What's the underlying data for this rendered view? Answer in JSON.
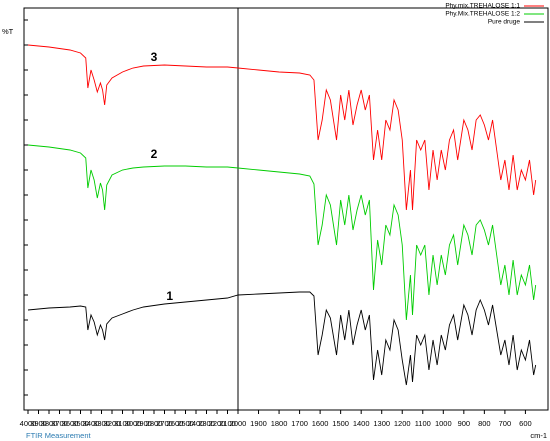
{
  "chart_data": {
    "type": "line",
    "ylabel": "%T",
    "xlabel": "cm-1",
    "footer": "FTIR Measurement",
    "xlim": [
      4000,
      490
    ],
    "xbreak": 2000,
    "ylim": [
      0,
      400
    ],
    "xticks": [
      4000,
      3900,
      3800,
      3700,
      3600,
      3500,
      3400,
      3300,
      3200,
      3100,
      3000,
      2900,
      2800,
      2700,
      2600,
      2500,
      2400,
      2300,
      2200,
      2100,
      2000,
      1900,
      1800,
      1700,
      1600,
      1500,
      1400,
      1300,
      1200,
      1100,
      1000,
      900,
      800,
      700,
      600
    ],
    "x": [
      4000,
      3800,
      3600,
      3500,
      3450,
      3430,
      3400,
      3370,
      3340,
      3310,
      3290,
      3270,
      3250,
      3200,
      3100,
      3000,
      2900,
      2700,
      2500,
      2300,
      2100,
      2000,
      1900,
      1800,
      1700,
      1650,
      1630,
      1610,
      1590,
      1570,
      1550,
      1520,
      1500,
      1480,
      1460,
      1440,
      1420,
      1400,
      1380,
      1360,
      1340,
      1320,
      1300,
      1280,
      1260,
      1240,
      1220,
      1200,
      1180,
      1160,
      1150,
      1130,
      1110,
      1090,
      1070,
      1050,
      1030,
      1010,
      990,
      970,
      950,
      930,
      900,
      880,
      860,
      840,
      820,
      800,
      780,
      760,
      740,
      720,
      700,
      680,
      660,
      640,
      620,
      600,
      580,
      560,
      550
    ],
    "series": [
      {
        "name": "Phy.mix.TREHALOSE 1:1",
        "color": "#ff0000",
        "values": [
          365,
          363,
          360,
          357,
          352,
          322,
          340,
          330,
          318,
          327,
          320,
          305,
          325,
          332,
          338,
          342,
          344,
          345,
          344,
          343,
          343,
          342,
          340,
          338,
          337,
          335,
          330,
          270,
          290,
          320,
          310,
          270,
          315,
          290,
          320,
          285,
          305,
          320,
          300,
          315,
          250,
          280,
          250,
          290,
          280,
          310,
          300,
          270,
          200,
          240,
          200,
          270,
          260,
          270,
          220,
          260,
          230,
          260,
          240,
          270,
          280,
          250,
          290,
          280,
          260,
          290,
          295,
          285,
          270,
          290,
          260,
          230,
          250,
          220,
          255,
          220,
          240,
          230,
          250,
          215,
          230
        ]
      },
      {
        "name": "Phy.Mix.TREHALOSE 1:2",
        "color": "#00cc00",
        "values": [
          265,
          263,
          260,
          257,
          252,
          222,
          240,
          230,
          212,
          227,
          220,
          200,
          225,
          235,
          240,
          242,
          243,
          244,
          244,
          243,
          243,
          242,
          240,
          238,
          236,
          234,
          226,
          165,
          185,
          215,
          205,
          165,
          210,
          185,
          215,
          180,
          200,
          215,
          195,
          210,
          120,
          170,
          145,
          185,
          175,
          205,
          195,
          165,
          90,
          135,
          95,
          165,
          155,
          165,
          115,
          155,
          125,
          155,
          135,
          165,
          175,
          145,
          185,
          175,
          155,
          185,
          190,
          180,
          165,
          185,
          155,
          125,
          145,
          115,
          150,
          115,
          135,
          125,
          145,
          110,
          125
        ]
      },
      {
        "name": "Pure druge",
        "color": "#000000",
        "values": [
          100,
          102,
          103,
          104,
          103,
          80,
          95,
          88,
          75,
          85,
          80,
          70,
          86,
          92,
          96,
          100,
          103,
          106,
          108,
          110,
          112,
          115,
          116,
          117,
          118,
          118,
          114,
          55,
          75,
          100,
          92,
          55,
          95,
          70,
          100,
          65,
          85,
          100,
          80,
          95,
          30,
          60,
          35,
          70,
          60,
          90,
          80,
          50,
          25,
          55,
          28,
          75,
          65,
          75,
          40,
          70,
          45,
          75,
          60,
          85,
          95,
          70,
          105,
          95,
          75,
          100,
          110,
          100,
          85,
          105,
          80,
          55,
          70,
          45,
          75,
          40,
          60,
          50,
          70,
          35,
          45
        ]
      }
    ],
    "annotations": [
      {
        "text": "3",
        "x": 2800,
        "y": 352
      },
      {
        "text": "2",
        "x": 2800,
        "y": 255
      },
      {
        "text": "1",
        "x": 2650,
        "y": 113
      }
    ]
  }
}
